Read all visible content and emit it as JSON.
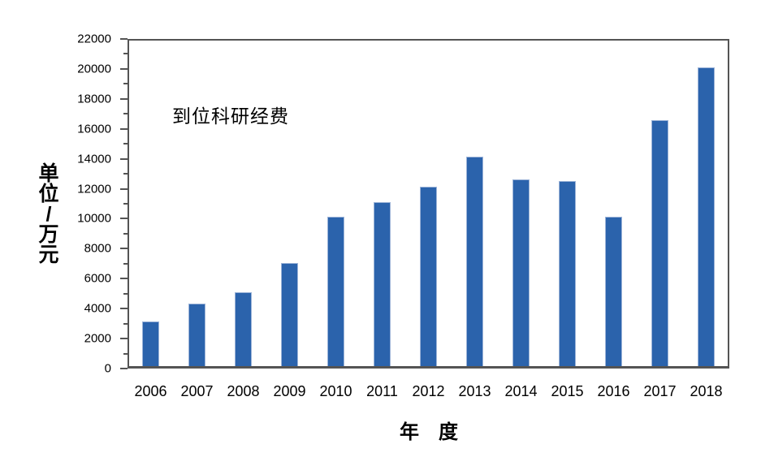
{
  "figure": {
    "background": "#ffffff"
  },
  "chart_data": {
    "type": "bar",
    "annotation": "到位科研经费",
    "xlabel": "年　度",
    "ylabel": "单位/万元",
    "categories": [
      "2006",
      "2007",
      "2008",
      "2009",
      "2010",
      "2011",
      "2012",
      "2013",
      "2014",
      "2015",
      "2016",
      "2017",
      "2018"
    ],
    "values": [
      3150,
      4350,
      5100,
      7050,
      10150,
      11100,
      12150,
      14150,
      12650,
      12500,
      10150,
      16600,
      20100
    ],
    "ylim": [
      0,
      22000
    ],
    "y_major_step": 2000,
    "y_minor_step": 1000,
    "y_tick_labels": [
      "0",
      "2000",
      "4000",
      "6000",
      "8000",
      "10000",
      "12000",
      "14000",
      "16000",
      "18000",
      "20000",
      "22000"
    ],
    "legend": "none",
    "grid": "off",
    "colors": {
      "bar_fill": "#2B63AC",
      "bar_edge": "#9DB4D8",
      "axis": "#545454",
      "text": "#000000"
    }
  }
}
